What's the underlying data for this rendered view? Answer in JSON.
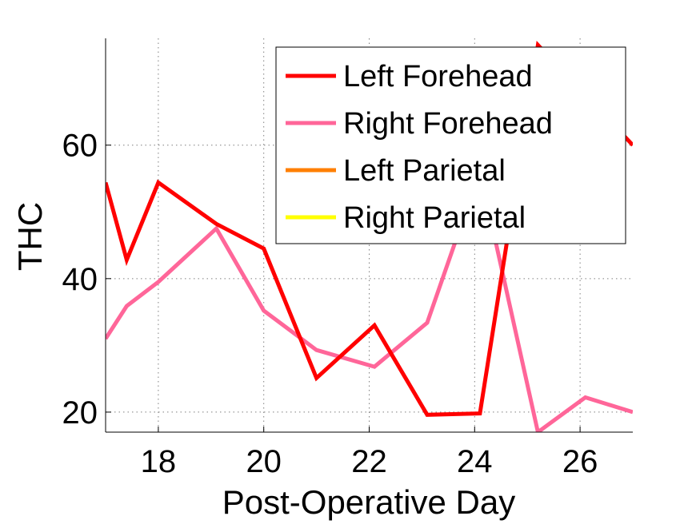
{
  "chart_data": {
    "type": "line",
    "xlabel": "Post-Operative Day",
    "ylabel": "THC",
    "xlim": [
      17,
      27
    ],
    "ylim": [
      17,
      76
    ],
    "xticks": [
      18,
      20,
      22,
      24,
      26
    ],
    "yticks": [
      20,
      40,
      60
    ],
    "grid": true,
    "legend_position": "top-right",
    "series": [
      {
        "name": "Left Forehead",
        "color": "#ff0000",
        "x": [
          17,
          17.4,
          18,
          19.1,
          20,
          21,
          22.1,
          23.1,
          24.1,
          25.2,
          27
        ],
        "y": [
          54.4,
          42.8,
          54.4,
          48.2,
          44.5,
          25.1,
          33.0,
          19.6,
          19.8,
          75.0,
          60.0
        ]
      },
      {
        "name": "Right Forehead",
        "color": "#ff6699",
        "x": [
          17,
          17.4,
          18,
          19.1,
          20,
          21,
          22.1,
          23.1,
          23.7,
          24.3,
          25.2,
          26.1,
          27
        ],
        "y": [
          31.0,
          35.9,
          39.5,
          47.5,
          35.2,
          29.3,
          26.8,
          33.4,
          47.0,
          49.0,
          17.0,
          22.2,
          20.0
        ]
      },
      {
        "name": "Left Parietal",
        "color": "#ff7f00",
        "x": [],
        "y": []
      },
      {
        "name": "Right Parietal",
        "color": "#ffff00",
        "x": [],
        "y": []
      }
    ]
  }
}
